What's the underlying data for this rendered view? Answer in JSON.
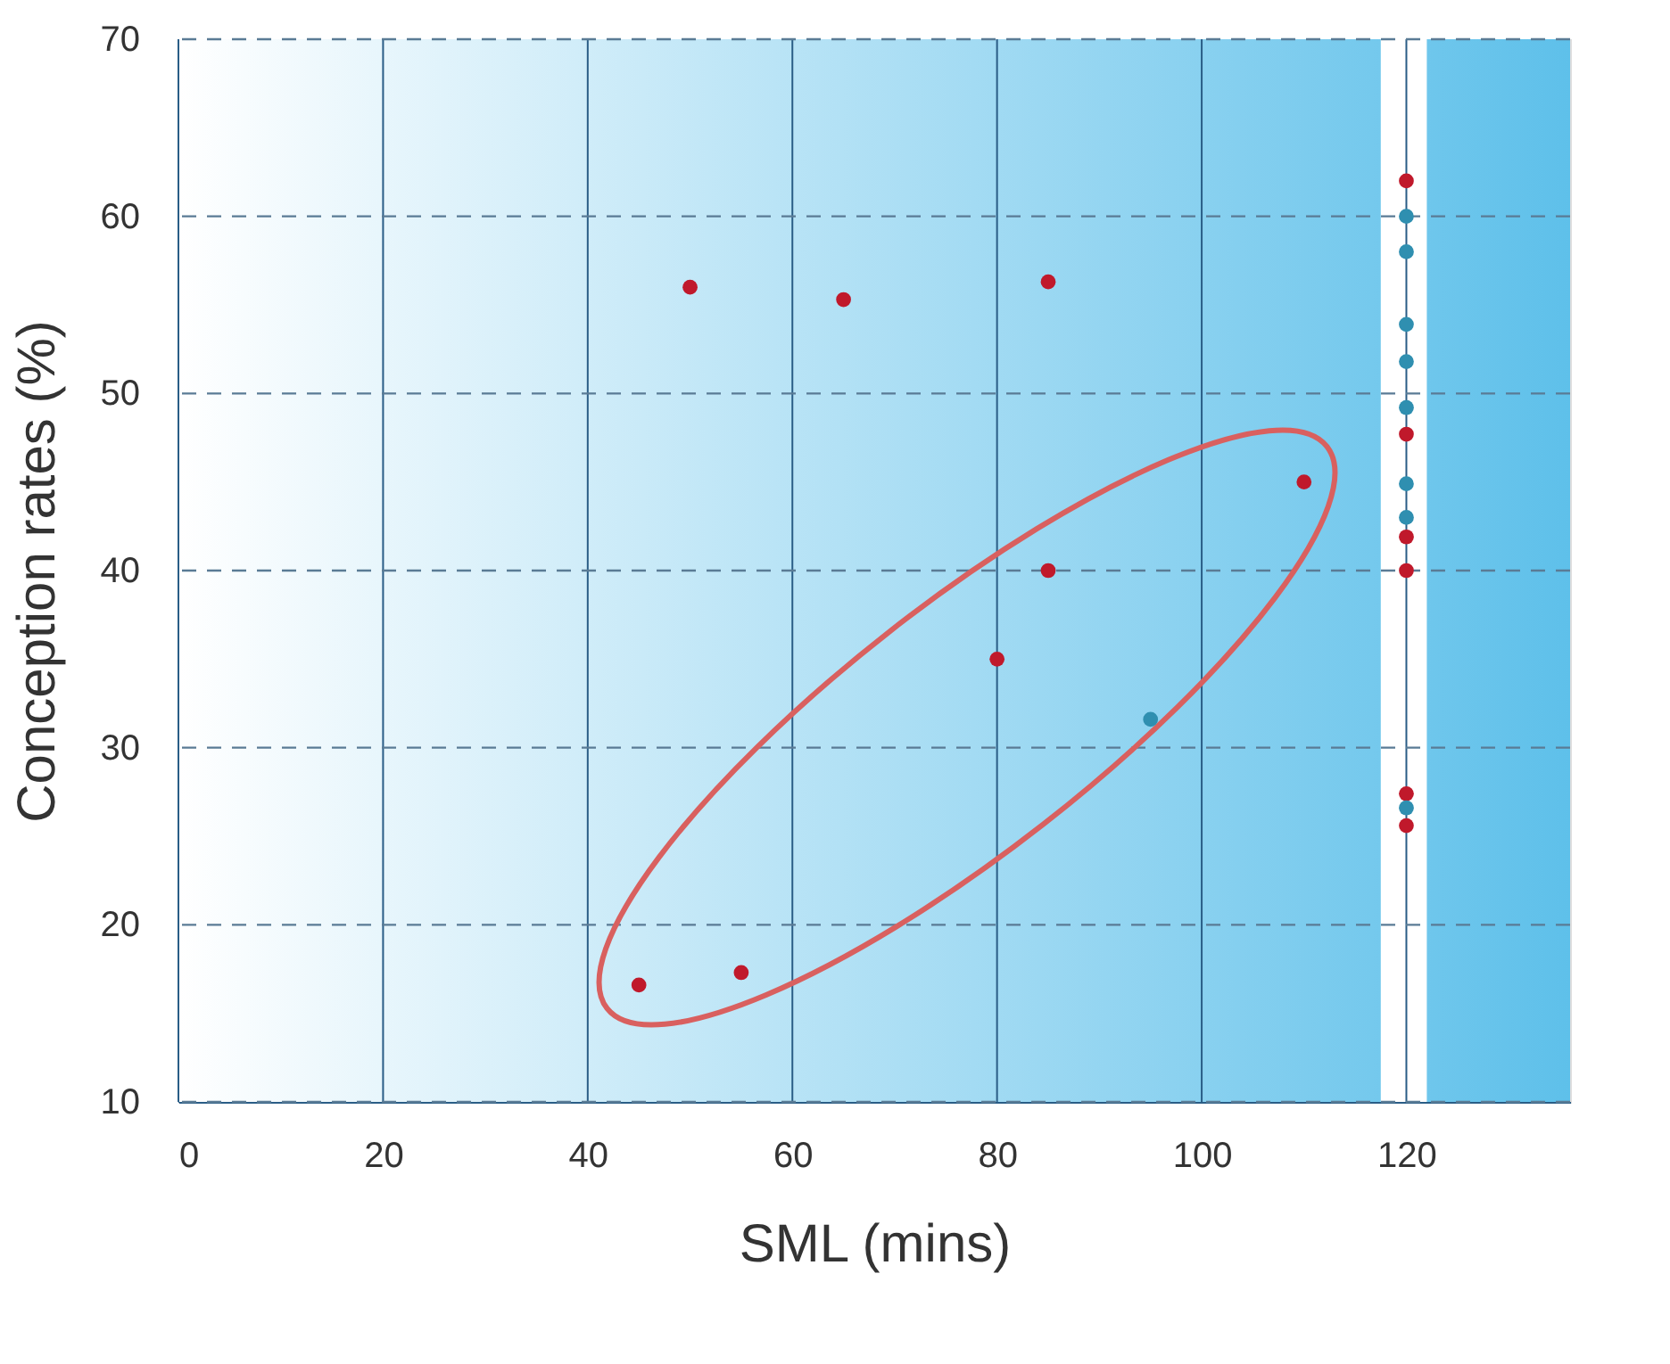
{
  "chart_data": {
    "type": "scatter",
    "xlabel": "SML (mins)",
    "ylabel": "Conception rates (%)",
    "xlim": [
      0,
      136
    ],
    "xticks": [
      0,
      20,
      40,
      60,
      80,
      100,
      120
    ],
    "ylim": [
      10,
      70
    ],
    "yticks": [
      10,
      20,
      30,
      40,
      50,
      60,
      70
    ],
    "grid": true,
    "bands": [
      {
        "axis": "x",
        "from": 117.5,
        "to": 122,
        "color": "#ffffff"
      }
    ],
    "series": [
      {
        "color": "#c0192b",
        "x": [
          45,
          55,
          50,
          65,
          85,
          80,
          85,
          110,
          120,
          120,
          120,
          120,
          120,
          120
        ],
        "values": [
          16.6,
          17.3,
          56,
          55.3,
          56.3,
          35,
          40,
          45,
          62,
          47.7,
          41.9,
          40,
          27.4,
          25.6
        ]
      },
      {
        "color": "#2f8fb0",
        "x": [
          95,
          120,
          120,
          120,
          120,
          120,
          120,
          120,
          120
        ],
        "values": [
          31.6,
          60,
          58,
          53.9,
          51.8,
          49.2,
          44.9,
          43,
          26.6
        ]
      }
    ]
  }
}
